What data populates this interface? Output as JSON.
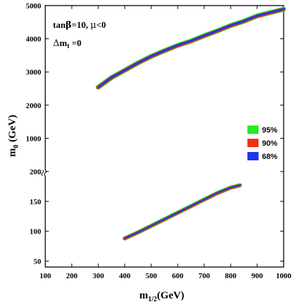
{
  "chart_data": {
    "type": "area",
    "title": "",
    "xlabel": {
      "main": "m",
      "sub": "1/2",
      "unit": "(GeV)"
    },
    "ylabel": {
      "main": "m",
      "sub": "0",
      "unit": "(GeV)"
    },
    "x_range": [
      100,
      1000
    ],
    "x_ticks": [
      "100",
      "200",
      "300",
      "400",
      "500",
      "600",
      "700",
      "800",
      "900",
      "1000"
    ],
    "y_axis_segments": [
      {
        "name": "lower",
        "range": [
          40,
          200
        ],
        "ticks": [
          "50",
          "100",
          "150",
          "200"
        ]
      },
      {
        "name": "upper",
        "range": [
          0,
          5000
        ],
        "ticks": [
          "1000",
          "2000",
          "3000",
          "4000",
          "5000"
        ]
      }
    ],
    "annotation_lines": [
      "tanβ=10, μ<0",
      "Δm t =0"
    ],
    "annotation": {
      "line1": {
        "tan": "tan",
        "beta": "β",
        "eq": "=10, ",
        "mu": "μ",
        "cond": "<0"
      },
      "line2": {
        "delta": "Δ",
        "m": "m",
        "sub": "t",
        "eq": " =0"
      }
    },
    "legend_position": "right",
    "series": [
      {
        "name": "95%",
        "color": "#22ee22"
      },
      {
        "name": "90%",
        "color": "#ee3311"
      },
      {
        "name": "68%",
        "color": "#2233ee"
      }
    ],
    "bands": [
      {
        "segment": "upper",
        "x": [
          300,
          350,
          400,
          450,
          500,
          550,
          600,
          650,
          700,
          750,
          800,
          850,
          900,
          950,
          1000
        ],
        "y": [
          2540,
          2830,
          3050,
          3270,
          3470,
          3640,
          3800,
          3930,
          4090,
          4240,
          4400,
          4530,
          4690,
          4790,
          4890
        ]
      },
      {
        "segment": "lower",
        "x": [
          400,
          450,
          500,
          550,
          600,
          650,
          700,
          750,
          800,
          835
        ],
        "y": [
          88,
          98,
          109,
          120,
          131,
          142,
          153,
          164,
          173,
          177
        ]
      }
    ]
  }
}
